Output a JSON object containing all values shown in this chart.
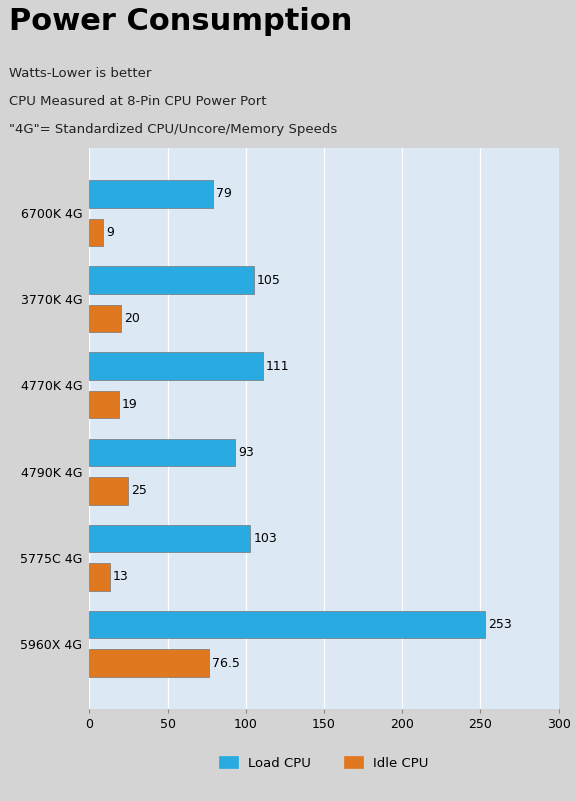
{
  "title": "Power Consumption",
  "subtitle_lines": [
    "Watts-Lower is better",
    "CPU Measured at 8-Pin CPU Power Port",
    "\"4G\"= Standardized CPU/Uncore/Memory Speeds"
  ],
  "categories": [
    "6700K 4G",
    "3770K 4G",
    "4770K 4G",
    "4790K 4G",
    "5775C 4G",
    "5960X 4G"
  ],
  "load_values": [
    79,
    105,
    111,
    93,
    103,
    253
  ],
  "idle_values": [
    9,
    20,
    19,
    25,
    13,
    76.5
  ],
  "load_color": "#29ABE2",
  "idle_color": "#E07820",
  "bar_edge_color": "#777777",
  "xlim": [
    0,
    300
  ],
  "xticks": [
    0,
    50,
    100,
    150,
    200,
    250,
    300
  ],
  "legend_labels": [
    "Load CPU",
    "Idle CPU"
  ],
  "chart_bg_color": "#DCE9F5",
  "outer_bg_color": "#D4D4D4",
  "title_fontsize": 22,
  "subtitle_fontsize": 9.5,
  "label_fontsize": 9,
  "bar_label_fontsize": 9,
  "tick_fontsize": 9,
  "legend_fontsize": 9.5
}
